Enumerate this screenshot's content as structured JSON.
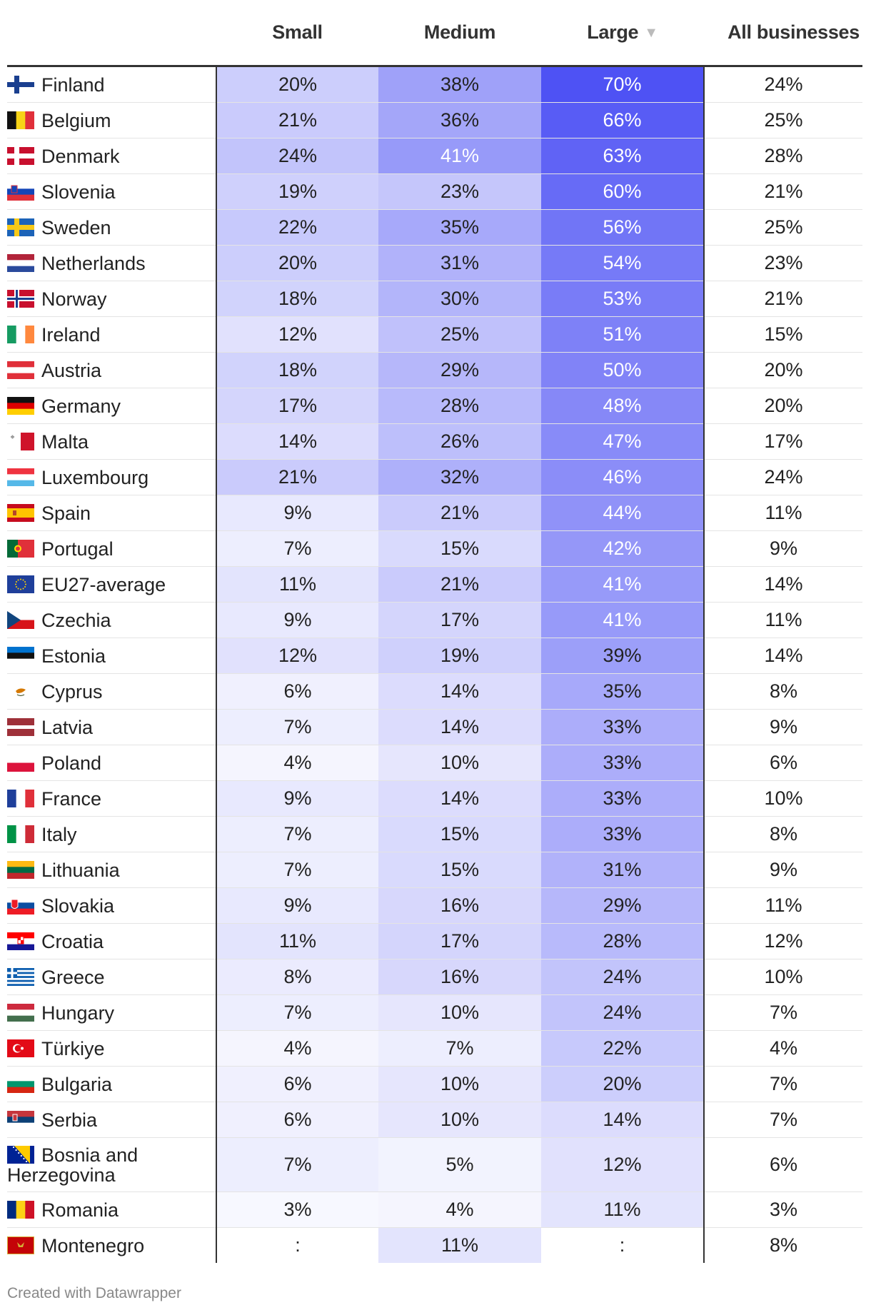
{
  "chart_data": {
    "type": "table",
    "columns": [
      {
        "key": "name",
        "label": ""
      },
      {
        "key": "small",
        "label": "Small"
      },
      {
        "key": "medium",
        "label": "Medium"
      },
      {
        "key": "large",
        "label": "Large",
        "sorted": "descending"
      },
      {
        "key": "all",
        "label": "All businesses"
      }
    ],
    "rows": [
      {
        "name": "Finland",
        "flag": "finland-flag-icon",
        "small": "20%",
        "medium": "38%",
        "large": "70%",
        "all": "24%"
      },
      {
        "name": "Belgium",
        "flag": "belgium-flag-icon",
        "small": "21%",
        "medium": "36%",
        "large": "66%",
        "all": "25%"
      },
      {
        "name": "Denmark",
        "flag": "denmark-flag-icon",
        "small": "24%",
        "medium": "41%",
        "large": "63%",
        "all": "28%"
      },
      {
        "name": "Slovenia",
        "flag": "slovenia-flag-icon",
        "small": "19%",
        "medium": "23%",
        "large": "60%",
        "all": "21%"
      },
      {
        "name": "Sweden",
        "flag": "sweden-flag-icon",
        "small": "22%",
        "medium": "35%",
        "large": "56%",
        "all": "25%"
      },
      {
        "name": "Netherlands",
        "flag": "netherlands-flag-icon",
        "small": "20%",
        "medium": "31%",
        "large": "54%",
        "all": "23%"
      },
      {
        "name": "Norway",
        "flag": "norway-flag-icon",
        "small": "18%",
        "medium": "30%",
        "large": "53%",
        "all": "21%"
      },
      {
        "name": "Ireland",
        "flag": "ireland-flag-icon",
        "small": "12%",
        "medium": "25%",
        "large": "51%",
        "all": "15%"
      },
      {
        "name": "Austria",
        "flag": "austria-flag-icon",
        "small": "18%",
        "medium": "29%",
        "large": "50%",
        "all": "20%"
      },
      {
        "name": "Germany",
        "flag": "germany-flag-icon",
        "small": "17%",
        "medium": "28%",
        "large": "48%",
        "all": "20%"
      },
      {
        "name": "Malta",
        "flag": "malta-flag-icon",
        "small": "14%",
        "medium": "26%",
        "large": "47%",
        "all": "17%"
      },
      {
        "name": "Luxembourg",
        "flag": "luxembourg-flag-icon",
        "small": "21%",
        "medium": "32%",
        "large": "46%",
        "all": "24%"
      },
      {
        "name": "Spain",
        "flag": "spain-flag-icon",
        "small": "9%",
        "medium": "21%",
        "large": "44%",
        "all": "11%"
      },
      {
        "name": "Portugal",
        "flag": "portugal-flag-icon",
        "small": "7%",
        "medium": "15%",
        "large": "42%",
        "all": "9%"
      },
      {
        "name": "EU27-average",
        "flag": "eu-flag-icon",
        "small": "11%",
        "medium": "21%",
        "large": "41%",
        "all": "14%"
      },
      {
        "name": "Czechia",
        "flag": "czechia-flag-icon",
        "small": "9%",
        "medium": "17%",
        "large": "41%",
        "all": "11%"
      },
      {
        "name": "Estonia",
        "flag": "estonia-flag-icon",
        "small": "12%",
        "medium": "19%",
        "large": "39%",
        "all": "14%"
      },
      {
        "name": "Cyprus",
        "flag": "cyprus-flag-icon",
        "small": "6%",
        "medium": "14%",
        "large": "35%",
        "all": "8%"
      },
      {
        "name": "Latvia",
        "flag": "latvia-flag-icon",
        "small": "7%",
        "medium": "14%",
        "large": "33%",
        "all": "9%"
      },
      {
        "name": "Poland",
        "flag": "poland-flag-icon",
        "small": "4%",
        "medium": "10%",
        "large": "33%",
        "all": "6%"
      },
      {
        "name": "France",
        "flag": "france-flag-icon",
        "small": "9%",
        "medium": "14%",
        "large": "33%",
        "all": "10%"
      },
      {
        "name": "Italy",
        "flag": "italy-flag-icon",
        "small": "7%",
        "medium": "15%",
        "large": "33%",
        "all": "8%"
      },
      {
        "name": "Lithuania",
        "flag": "lithuania-flag-icon",
        "small": "7%",
        "medium": "15%",
        "large": "31%",
        "all": "9%"
      },
      {
        "name": "Slovakia",
        "flag": "slovakia-flag-icon",
        "small": "9%",
        "medium": "16%",
        "large": "29%",
        "all": "11%"
      },
      {
        "name": "Croatia",
        "flag": "croatia-flag-icon",
        "small": "11%",
        "medium": "17%",
        "large": "28%",
        "all": "12%"
      },
      {
        "name": "Greece",
        "flag": "greece-flag-icon",
        "small": "8%",
        "medium": "16%",
        "large": "24%",
        "all": "10%"
      },
      {
        "name": "Hungary",
        "flag": "hungary-flag-icon",
        "small": "7%",
        "medium": "10%",
        "large": "24%",
        "all": "7%"
      },
      {
        "name": "Türkiye",
        "flag": "turkiye-flag-icon",
        "small": "4%",
        "medium": "7%",
        "large": "22%",
        "all": "4%"
      },
      {
        "name": "Bulgaria",
        "flag": "bulgaria-flag-icon",
        "small": "6%",
        "medium": "10%",
        "large": "20%",
        "all": "7%"
      },
      {
        "name": "Serbia",
        "flag": "serbia-flag-icon",
        "small": "6%",
        "medium": "10%",
        "large": "14%",
        "all": "7%"
      },
      {
        "name": "Bosnia and Herzegovina",
        "flag": "bosnia-flag-icon",
        "small": "7%",
        "medium": "5%",
        "large": "12%",
        "all": "6%"
      },
      {
        "name": "Romania",
        "flag": "romania-flag-icon",
        "small": "3%",
        "medium": "4%",
        "large": "11%",
        "all": "3%"
      },
      {
        "name": "Montenegro",
        "flag": "montenegro-flag-icon",
        "small": ":",
        "medium": "11%",
        "large": ":",
        "all": "8%"
      }
    ],
    "heatmap_columns": [
      "small",
      "medium",
      "large"
    ],
    "color_scale": {
      "low": "#ffffff",
      "high": "#4e52f4",
      "max_value": 70
    }
  },
  "footer": {
    "credit": "Created with Datawrapper"
  }
}
